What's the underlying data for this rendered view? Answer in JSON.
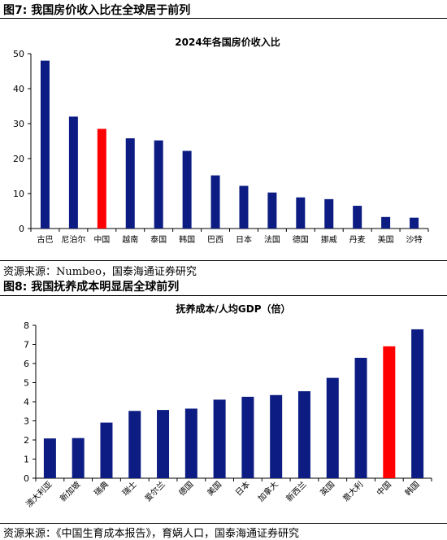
{
  "figures": [
    {
      "fig_title": "图7:  我国房价收入比在全球居于前列",
      "source": "资源来源：Numbeo，国泰海通证券研究"
    },
    {
      "fig_title": "图8:  我国抚养成本明显居全球前列",
      "source": "资源来源：《中国生育成本报告》，育娲人口，国泰海通证券研究"
    }
  ],
  "chart_data": [
    {
      "type": "bar",
      "title": "2024年各国房价收入比",
      "categories": [
        "古巴",
        "尼泊尔",
        "中国",
        "越南",
        "泰国",
        "韩国",
        "巴西",
        "日本",
        "法国",
        "德国",
        "挪威",
        "丹麦",
        "美国",
        "沙特"
      ],
      "values": [
        48,
        32,
        28.5,
        25.8,
        25.2,
        22.2,
        15.2,
        12.2,
        10.3,
        8.9,
        8.4,
        6.5,
        3.3,
        3.1
      ],
      "highlight": "中国",
      "ylim": [
        0,
        50
      ],
      "yticks": [
        0,
        10,
        20,
        30,
        40,
        50
      ],
      "xlabel": "",
      "ylabel": "",
      "grid": false,
      "colors": {
        "bar": "#0c1c82",
        "highlight": "#ff0000"
      }
    },
    {
      "type": "bar",
      "title": "抚养成本/人均GDP（倍）",
      "categories": [
        "澳大利亚",
        "新加坡",
        "瑞典",
        "瑞士",
        "爱尔兰",
        "德国",
        "美国",
        "日本",
        "加拿大",
        "新西兰",
        "英国",
        "意大利",
        "中国",
        "韩国"
      ],
      "values": [
        2.08,
        2.1,
        2.91,
        3.52,
        3.57,
        3.64,
        4.11,
        4.26,
        4.35,
        4.55,
        5.25,
        6.3,
        6.9,
        7.79
      ],
      "highlight": "中国",
      "ylim": [
        0,
        8
      ],
      "yticks": [
        0,
        1,
        2,
        3,
        4,
        5,
        6,
        7,
        8
      ],
      "xlabel": "",
      "ylabel": "",
      "grid": false,
      "colors": {
        "bar": "#0c1c82",
        "highlight": "#ff0000"
      }
    }
  ]
}
